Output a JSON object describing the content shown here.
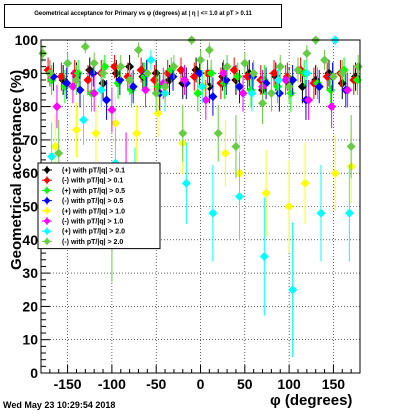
{
  "chart_data": {
    "type": "scatter",
    "title": "Geometrical acceptance for Primary vs φ (degrees) at | η | <= 1.0 at pT > 0.11",
    "xlabel": "φ (degrees)",
    "ylabel": "Geometrical acceptance (%)",
    "xlim": [
      -180,
      180
    ],
    "ylim": [
      0,
      100
    ],
    "x_ticks": [
      -150,
      -100,
      -50,
      0,
      50,
      100,
      150
    ],
    "y_ticks": [
      0,
      10,
      20,
      30,
      40,
      50,
      60,
      70,
      80,
      90,
      100
    ],
    "grid": true,
    "legend_position": "middle-left",
    "series": [
      {
        "name": "(+) with pT/|q| > 0.1",
        "color": "#000000",
        "marker": "diamond",
        "x": [
          -170,
          -155,
          -140,
          -125,
          -110,
          -95,
          -80,
          -65,
          -50,
          -35,
          -20,
          -5,
          10,
          25,
          40,
          55,
          70,
          85,
          100,
          115,
          130,
          145,
          160,
          175
        ],
        "y": [
          90,
          88,
          89,
          91,
          87,
          90,
          92,
          89,
          90,
          88,
          87,
          91,
          86,
          89,
          88,
          90,
          85,
          89,
          87,
          86,
          88,
          90,
          87,
          89
        ]
      },
      {
        "name": "(-) with pT/|q| > 0.1",
        "color": "#ff0000",
        "marker": "diamond",
        "x": [
          -172,
          -157,
          -142,
          -127,
          -112,
          -97,
          -82,
          -67,
          -52,
          -37,
          -22,
          -7,
          8,
          23,
          38,
          53,
          68,
          83,
          98,
          113,
          128,
          143,
          158,
          173
        ],
        "y": [
          91,
          89,
          90,
          88,
          90,
          92,
          89,
          91,
          88,
          90,
          91,
          89,
          90,
          87,
          91,
          89,
          88,
          90,
          89,
          91,
          87,
          89,
          90,
          88
        ]
      },
      {
        "name": "(+) with pT/|q| > 0.5",
        "color": "#00ff00",
        "marker": "diamond",
        "x": [
          -168,
          -153,
          -138,
          -123,
          -108,
          -93,
          -78,
          -63,
          -48,
          -33,
          -18,
          -3,
          12,
          27,
          42,
          57,
          72,
          87,
          102,
          117,
          132,
          147,
          162,
          177
        ],
        "y": [
          88,
          86,
          90,
          84,
          92,
          87,
          85,
          89,
          86,
          91,
          88,
          84,
          90,
          87,
          89,
          85,
          88,
          86,
          84,
          90,
          87,
          85,
          91,
          88
        ]
      },
      {
        "name": "(-) with pT/|q| > 0.5",
        "color": "#0000ff",
        "marker": "diamond",
        "x": [
          -166,
          -151,
          -136,
          -121,
          -106,
          -91,
          -76,
          -61,
          -46,
          -31,
          -16,
          -1,
          14,
          29,
          44,
          59,
          74,
          89,
          104,
          119,
          134,
          149,
          164
        ],
        "y": [
          89,
          87,
          85,
          90,
          82,
          88,
          86,
          90,
          84,
          89,
          87,
          90,
          83,
          88,
          86,
          89,
          87,
          84,
          88,
          82,
          86,
          89,
          85
        ]
      },
      {
        "name": "(+) with pT/|q| > 1.0",
        "color": "#ffff00",
        "marker": "diamond",
        "x": [
          -164,
          -140,
          -118,
          -96,
          -72,
          -48,
          -20,
          5,
          28,
          44,
          74,
          100,
          118,
          152,
          170
        ],
        "y": [
          68,
          73,
          72,
          75,
          72,
          78,
          69,
          86,
          66,
          60,
          54,
          50,
          57,
          60,
          62
        ]
      },
      {
        "name": "(-) with pT/|q| > 1.0",
        "color": "#ff00ff",
        "marker": "diamond",
        "x": [
          -162,
          -144,
          -120,
          -100,
          -84,
          -62,
          -42,
          -18,
          6,
          26,
          48,
          70,
          96,
          122,
          148,
          166
        ],
        "y": [
          80,
          86,
          84,
          79,
          61,
          85,
          87,
          88,
          82,
          90,
          84,
          86,
          88,
          82,
          80,
          85
        ]
      },
      {
        "name": "(+) with pT/|q| > 2.0",
        "color": "#00ffff",
        "marker": "diamond",
        "x": [
          -168,
          -150,
          -132,
          -112,
          -96,
          -74,
          -56,
          -40,
          -16,
          2,
          14,
          30,
          44,
          58,
          72,
          88,
          104,
          120,
          136,
          152,
          168
        ],
        "y": [
          65,
          93,
          76,
          85,
          63,
          55,
          94,
          84,
          57,
          86,
          48,
          92,
          53,
          84,
          35,
          88,
          25,
          90,
          48,
          100,
          48
        ]
      },
      {
        "name": "(-) with pT/|q| > 2.0",
        "color": "#66cc44",
        "marker": "diamond",
        "x": [
          -178,
          -170,
          -160,
          -150,
          -140,
          -130,
          -120,
          -110,
          -100,
          -90,
          -80,
          -70,
          -60,
          -50,
          -40,
          -30,
          -20,
          -10,
          0,
          10,
          20,
          30,
          40,
          50,
          60,
          70,
          80,
          90,
          100,
          110,
          120,
          130,
          140,
          150,
          160,
          170,
          178
        ],
        "y": [
          96,
          90,
          66,
          93,
          88,
          98,
          93,
          90,
          43,
          92,
          88,
          97,
          90,
          84,
          86,
          92,
          72,
          100,
          94,
          97,
          72,
          92,
          68,
          93,
          90,
          81,
          84,
          92,
          86,
          91,
          96,
          100,
          94,
          89,
          90,
          68,
          92
        ]
      }
    ]
  },
  "footer": {
    "date": "Wed May 23 10:29:54 2018"
  }
}
